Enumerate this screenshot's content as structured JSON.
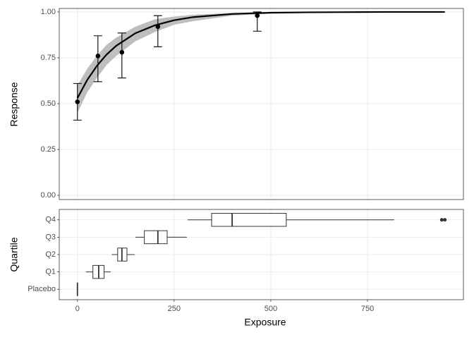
{
  "chart_data": [
    {
      "type": "line",
      "ylabel": "Response",
      "xlim": [
        -47,
        998
      ],
      "xticks": [
        0,
        250,
        500,
        750
      ],
      "ylim": [
        -0.023,
        1.019
      ],
      "yticks": [
        {
          "value": 0,
          "label": "0.00"
        },
        {
          "value": 0.25,
          "label": "0.25"
        },
        {
          "value": 0.5,
          "label": "0.50"
        },
        {
          "value": 0.75,
          "label": "0.75"
        },
        {
          "value": 1,
          "label": "1.00"
        }
      ],
      "grid": true,
      "color": "#000000",
      "ribbon_color": "#bebebe",
      "x": [
        0,
        25,
        50,
        75,
        100,
        150,
        200,
        250,
        300,
        400,
        500,
        600,
        700,
        800,
        950
      ],
      "values": [
        0.53,
        0.628,
        0.705,
        0.767,
        0.815,
        0.884,
        0.927,
        0.955,
        0.972,
        0.989,
        0.996,
        0.998,
        0.999,
        1.0,
        1.0
      ],
      "ribbon_lower": [
        0.45,
        0.56,
        0.64,
        0.71,
        0.76,
        0.84,
        0.89,
        0.93,
        0.95,
        0.98,
        0.99,
        0.996,
        0.998,
        0.999,
        1.0
      ],
      "ribbon_upper": [
        0.6,
        0.69,
        0.76,
        0.82,
        0.86,
        0.92,
        0.96,
        0.975,
        0.985,
        0.995,
        0.999,
        1.0,
        1.0,
        1.0,
        1.0
      ],
      "points": {
        "x": [
          0,
          53,
          115,
          208,
          465
        ],
        "values": [
          0.51,
          0.76,
          0.78,
          0.92,
          0.98
        ],
        "lower": [
          0.41,
          0.62,
          0.64,
          0.81,
          0.895
        ],
        "upper": [
          0.61,
          0.87,
          0.885,
          0.98,
          1.0
        ]
      }
    },
    {
      "type": "boxplot",
      "xlabel": "Exposure",
      "ylabel": "Quartile",
      "xlim": [
        -47,
        998
      ],
      "xticks": [
        0,
        250,
        500,
        750
      ],
      "grid": true,
      "color": "#333333",
      "categories": [
        "Placebo",
        "Q1",
        "Q2",
        "Q3",
        "Q4"
      ],
      "min": [
        0,
        22,
        89,
        150,
        285
      ],
      "q1": [
        0,
        40,
        104,
        173,
        347
      ],
      "median": [
        0,
        55,
        115,
        208,
        400
      ],
      "q3": [
        0,
        69,
        128,
        232,
        540
      ],
      "max": [
        0,
        86,
        148,
        283,
        819
      ],
      "outliers": [
        [],
        [],
        [],
        [],
        [
          942,
          950
        ]
      ]
    }
  ]
}
